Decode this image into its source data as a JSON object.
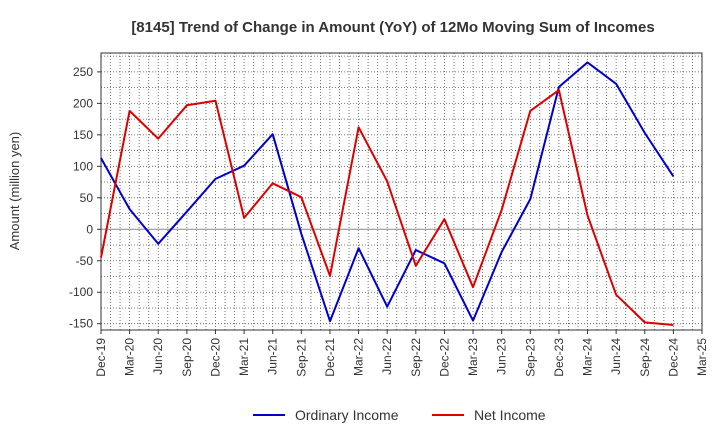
{
  "chart_data": {
    "type": "line",
    "title": "[8145]  Trend of Change in Amount (YoY) of 12Mo Moving Sum of Incomes",
    "ylabel": "Amount (million yen)",
    "xlabel": "",
    "ylim": [
      -160,
      280
    ],
    "yticks": [
      250,
      200,
      150,
      100,
      50,
      0,
      -50,
      -100,
      -150
    ],
    "categories": [
      "Dec-19",
      "Mar-20",
      "Jun-20",
      "Sep-20",
      "Dec-20",
      "Mar-21",
      "Jun-21",
      "Sep-21",
      "Dec-21",
      "Mar-22",
      "Jun-22",
      "Sep-22",
      "Dec-22",
      "Mar-23",
      "Jun-23",
      "Sep-23",
      "Dec-23",
      "Mar-24",
      "Jun-24",
      "Sep-24",
      "Dec-24",
      "Mar-25"
    ],
    "grid": true,
    "legend_position": "bottom",
    "series": [
      {
        "name": "Ordinary Income",
        "color": "#0000cc",
        "values": [
          113,
          32,
          -23,
          28,
          80,
          101,
          151,
          -7,
          -146,
          -30,
          -123,
          -33,
          -54,
          -145,
          -36,
          48,
          226,
          265,
          231,
          153,
          84,
          null
        ]
      },
      {
        "name": "Net Income",
        "color": "#dd0000",
        "values": [
          -45,
          188,
          144,
          197,
          204,
          18,
          73,
          51,
          -74,
          162,
          76,
          -58,
          16,
          -92,
          31,
          188,
          221,
          22,
          -104,
          -148,
          -152,
          null
        ]
      }
    ]
  }
}
